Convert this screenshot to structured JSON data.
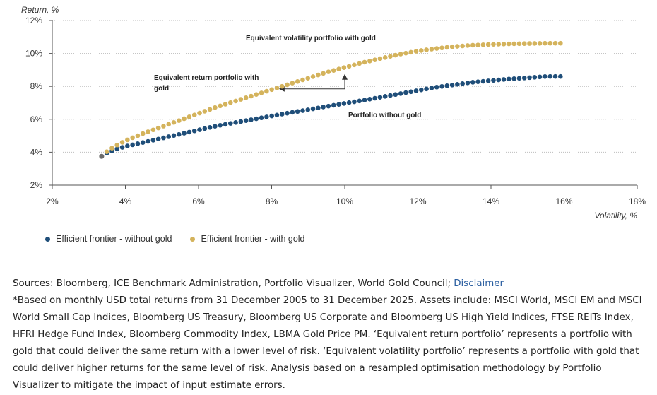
{
  "colors": {
    "without": "#1f4e79",
    "with": "#d4b35c",
    "grid": "#bdbdbd",
    "arrow": "#333333"
  },
  "chart_data": {
    "type": "scatter",
    "title": "",
    "ylabel": "Return, %",
    "xlabel": "Volatility, %",
    "xlim": [
      2,
      18
    ],
    "ylim": [
      2,
      12
    ],
    "x_ticks": [
      2,
      4,
      6,
      8,
      10,
      12,
      14,
      16,
      18
    ],
    "y_ticks": [
      2,
      4,
      6,
      8,
      10,
      12
    ],
    "x_tick_labels": [
      "2%",
      "4%",
      "6%",
      "8%",
      "10%",
      "12%",
      "14%",
      "16%",
      "18%"
    ],
    "y_tick_labels": [
      "2%",
      "4%",
      "6%",
      "8%",
      "10%",
      "12%"
    ],
    "grid": "horizontal-dotted",
    "series": [
      {
        "name": "Efficient frontier - without gold",
        "color": "#1f4e79",
        "x": [
          3.35,
          3.5,
          3.7,
          4.0,
          4.5,
          5.0,
          5.5,
          6.0,
          6.5,
          7.0,
          7.5,
          8.0,
          8.5,
          9.0,
          9.5,
          10.0,
          10.5,
          11.0,
          11.5,
          12.0,
          12.5,
          13.0,
          13.5,
          14.0,
          14.5,
          15.0,
          15.5,
          15.9
        ],
        "y": [
          3.75,
          3.95,
          4.15,
          4.35,
          4.6,
          4.85,
          5.1,
          5.35,
          5.6,
          5.8,
          6.0,
          6.2,
          6.4,
          6.58,
          6.78,
          6.97,
          7.15,
          7.35,
          7.55,
          7.75,
          7.95,
          8.1,
          8.25,
          8.35,
          8.45,
          8.52,
          8.6,
          8.6
        ]
      },
      {
        "name": "Efficient frontier - with gold",
        "color": "#d4b35c",
        "x": [
          3.35,
          3.5,
          3.7,
          4.0,
          4.5,
          5.0,
          5.5,
          6.0,
          6.5,
          7.0,
          7.5,
          8.0,
          8.5,
          9.0,
          9.5,
          10.0,
          10.5,
          11.0,
          11.5,
          12.0,
          12.5,
          13.0,
          13.5,
          14.0,
          14.5,
          15.0,
          15.5,
          15.9
        ],
        "y": [
          3.75,
          4.05,
          4.35,
          4.7,
          5.15,
          5.55,
          5.95,
          6.35,
          6.75,
          7.1,
          7.45,
          7.8,
          8.15,
          8.5,
          8.85,
          9.15,
          9.45,
          9.7,
          9.95,
          10.15,
          10.3,
          10.42,
          10.5,
          10.55,
          10.58,
          10.6,
          10.62,
          10.62
        ]
      }
    ],
    "annotations": {
      "volatility_portfolio": "Equivalent volatility portfolio with gold",
      "return_portfolio_line1": "Equivalent return portfolio with",
      "return_portfolio_line2": "gold",
      "without_gold": "Portfolio without gold"
    },
    "arrows": {
      "corner": {
        "x": 10.0,
        "y": 7.85
      },
      "up_to": {
        "x": 10.0,
        "y": 8.75
      },
      "left_to": {
        "x": 8.2,
        "y": 7.85
      }
    }
  },
  "legend": {
    "without_gold": "Efficient frontier - without gold",
    "with_gold": "Efficient frontier - with gold"
  },
  "notes": {
    "sources_prefix": "Sources: Bloomberg, ICE Benchmark Administration, Portfolio Visualizer, World Gold Council;",
    "disclaimer_link": "Disclaimer",
    "footnote": "*Based on monthly USD total returns from 31 December 2005 to 31 December 2025. Assets include: MSCI World, MSCI EM and MSCI World Small Cap Indices, Bloomberg US Treasury, Bloomberg US Corporate and Bloomberg US High Yield Indices, FTSE REITs Index, HFRI Hedge Fund Index, Bloomberg Commodity Index, LBMA Gold Price PM. ‘Equivalent return portfolio’ represents a portfolio with gold that could deliver the same return with a lower level of risk. ‘Equivalent volatility portfolio’ represents a portfolio with gold that could deliver higher returns for the same level of risk. Analysis based on a resampled optimisation methodology by Portfolio Visualizer to mitigate the impact of input estimate errors."
  }
}
